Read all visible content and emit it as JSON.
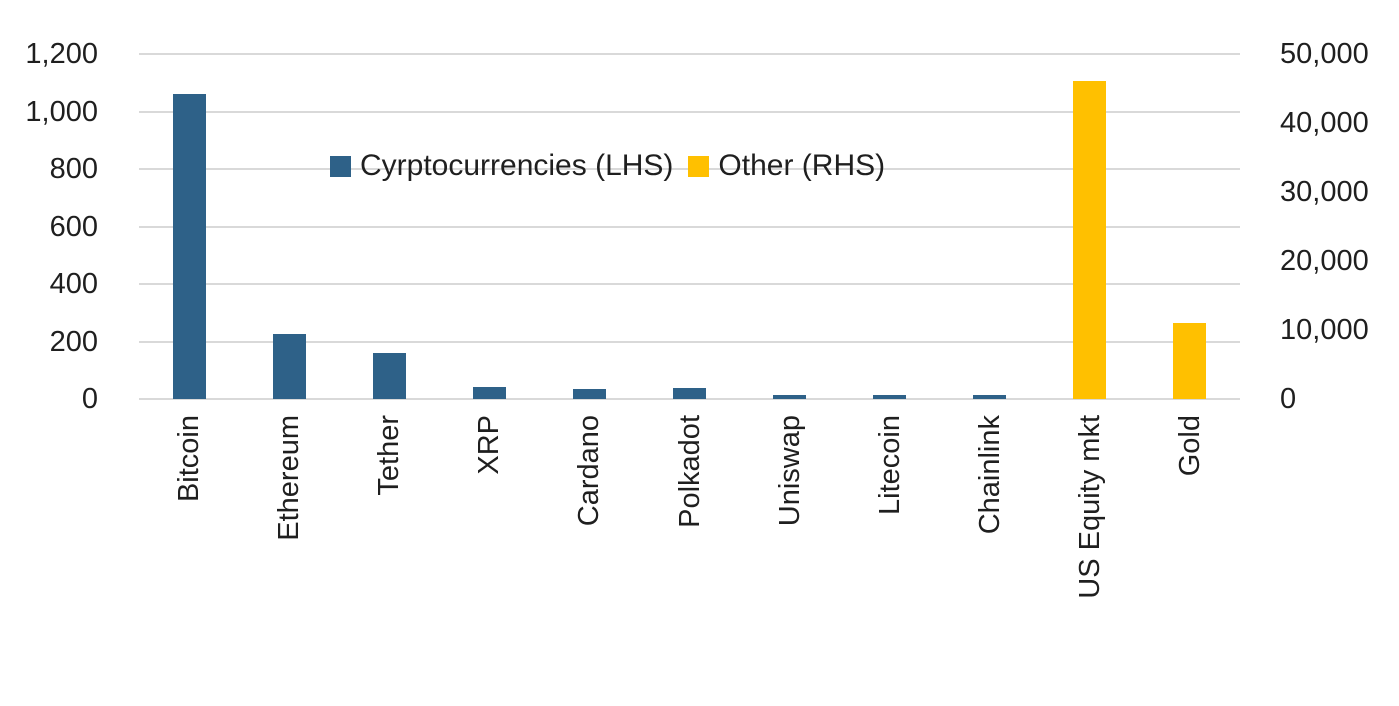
{
  "chart_data": {
    "type": "bar",
    "title": "",
    "dual_axis": true,
    "grid": true,
    "legend_position": "inside-top-center",
    "categories": [
      "Bitcoin",
      "Ethereum",
      "Tether",
      "XRP",
      "Cardano",
      "Polkadot",
      "Uniswap",
      "Litecoin",
      "Chainlink",
      "US Equity mkt",
      "Gold"
    ],
    "series": [
      {
        "name": "Cyrptocurrencies (LHS)",
        "axis": "left",
        "color": "#2e6188",
        "values": [
          1060,
          225,
          160,
          43,
          36,
          37,
          15,
          14,
          14,
          null,
          null
        ]
      },
      {
        "name": "Other (RHS)",
        "axis": "right",
        "color": "#ffc000",
        "values": [
          null,
          null,
          null,
          null,
          null,
          null,
          null,
          null,
          null,
          46100,
          11000
        ]
      }
    ],
    "left_axis": {
      "min": 0,
      "max": 1200,
      "ticks": [
        "1,200",
        "1,000",
        "800",
        "600",
        "400",
        "200",
        "0"
      ]
    },
    "right_axis": {
      "min": 0,
      "max": 50000,
      "ticks": [
        "50,000",
        "40,000",
        "30,000",
        "20,000",
        "10,000",
        "0"
      ]
    },
    "legend": [
      {
        "label": "Cyrptocurrencies (LHS)",
        "color": "#2e6188"
      },
      {
        "label": "Other (RHS)",
        "color": "#ffc000"
      }
    ],
    "colors": {
      "gridline": "#d9d9d9",
      "text": "#1f1f1f",
      "background": "#ffffff"
    }
  }
}
